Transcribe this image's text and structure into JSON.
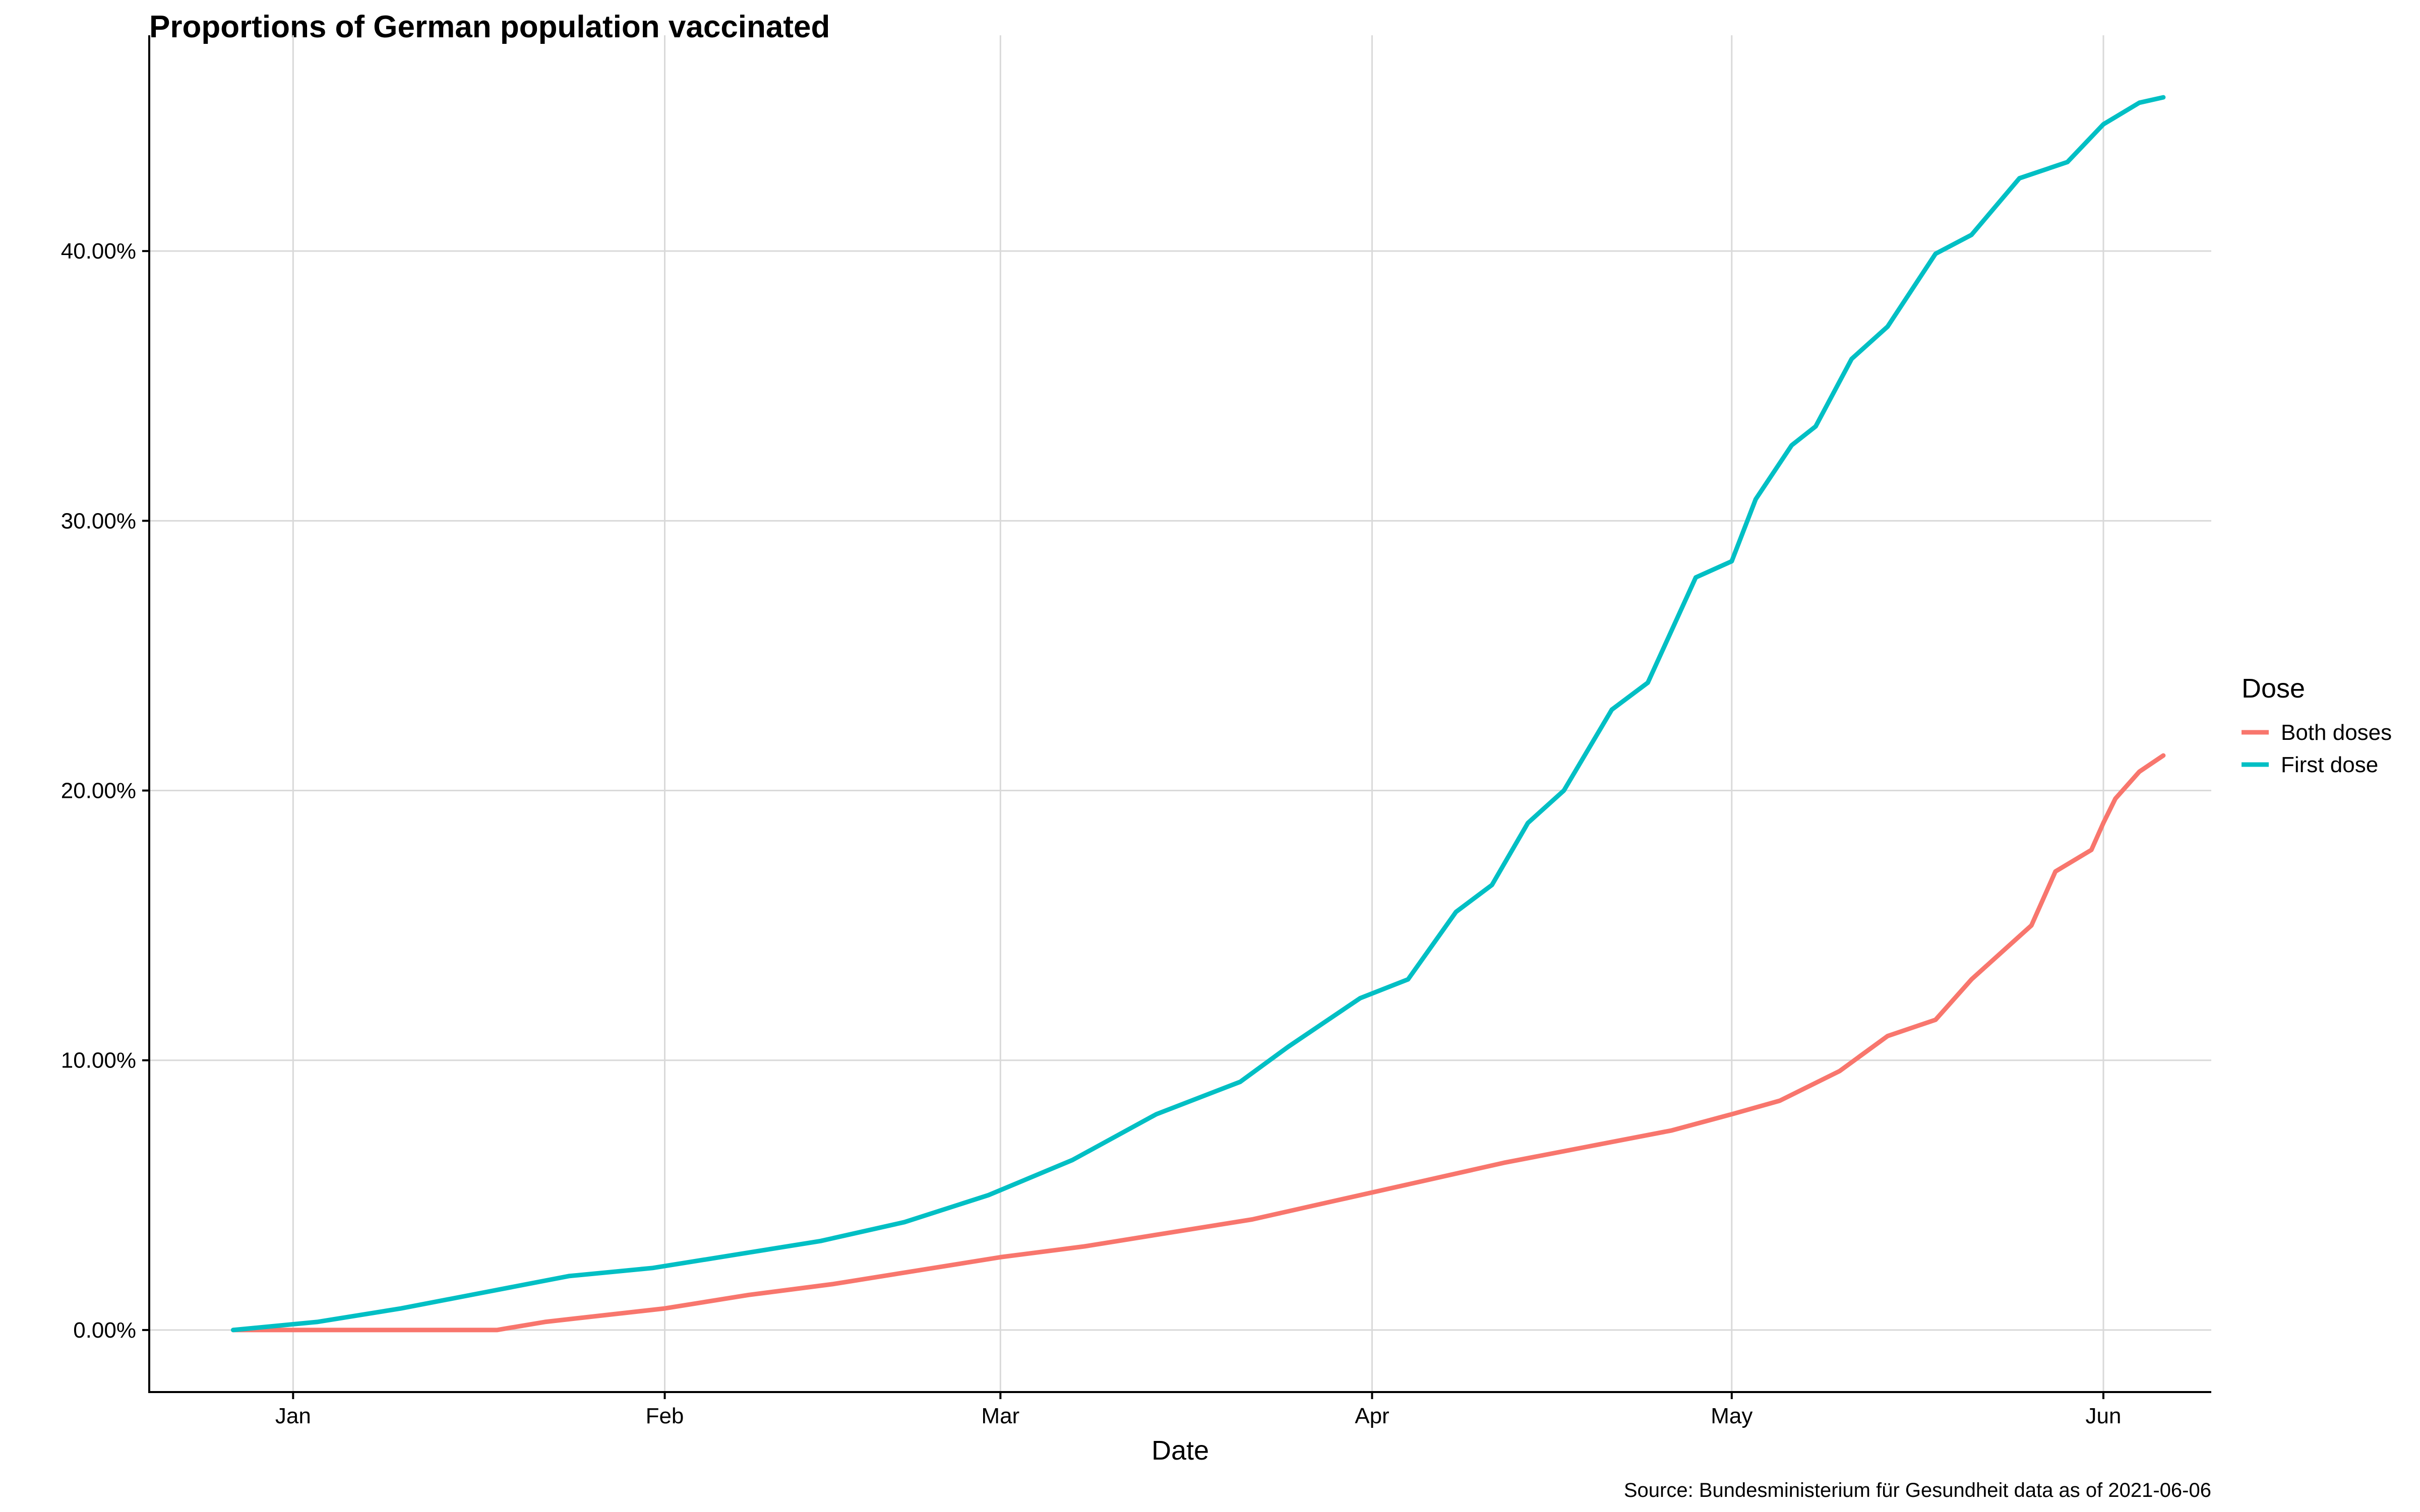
{
  "chart_data": {
    "type": "line",
    "title": "Proportions of German population vaccinated",
    "xlabel": "Date",
    "ylabel": "",
    "caption": "Source: Bundesministerium für Gesundheit data as of 2021-06-06",
    "x_range": [
      "2020-12-20",
      "2021-06-10"
    ],
    "ylim": [
      -2.3,
      48
    ],
    "x_ticks": [
      {
        "label": "Jan",
        "date": "2021-01-01"
      },
      {
        "label": "Feb",
        "date": "2021-02-01"
      },
      {
        "label": "Mar",
        "date": "2021-03-01"
      },
      {
        "label": "Apr",
        "date": "2021-04-01"
      },
      {
        "label": "May",
        "date": "2021-05-01"
      },
      {
        "label": "Jun",
        "date": "2021-06-01"
      }
    ],
    "y_ticks": [
      {
        "label": "0.00%",
        "value": 0
      },
      {
        "label": "10.00%",
        "value": 10
      },
      {
        "label": "20.00%",
        "value": 20
      },
      {
        "label": "30.00%",
        "value": 30
      },
      {
        "label": "40.00%",
        "value": 40
      }
    ],
    "grid": true,
    "legend": {
      "title": "Dose",
      "position": "right"
    },
    "series": [
      {
        "name": "Both doses",
        "color": "#F8766D",
        "points": [
          [
            "2020-12-27",
            0
          ],
          [
            "2021-01-10",
            0
          ],
          [
            "2021-01-18",
            0
          ],
          [
            "2021-01-22",
            0.3
          ],
          [
            "2021-01-26",
            0.5
          ],
          [
            "2021-02-01",
            0.8
          ],
          [
            "2021-02-08",
            1.3
          ],
          [
            "2021-02-15",
            1.7
          ],
          [
            "2021-02-22",
            2.2
          ],
          [
            "2021-03-01",
            2.7
          ],
          [
            "2021-03-08",
            3.1
          ],
          [
            "2021-03-15",
            3.6
          ],
          [
            "2021-03-22",
            4.1
          ],
          [
            "2021-03-29",
            4.8
          ],
          [
            "2021-04-05",
            5.5
          ],
          [
            "2021-04-12",
            6.2
          ],
          [
            "2021-04-19",
            6.8
          ],
          [
            "2021-04-26",
            7.4
          ],
          [
            "2021-05-01",
            8.0
          ],
          [
            "2021-05-05",
            8.5
          ],
          [
            "2021-05-10",
            9.6
          ],
          [
            "2021-05-14",
            10.9
          ],
          [
            "2021-05-18",
            11.5
          ],
          [
            "2021-05-21",
            13.0
          ],
          [
            "2021-05-24",
            14.2
          ],
          [
            "2021-05-26",
            15.0
          ],
          [
            "2021-05-28",
            17.0
          ],
          [
            "2021-05-31",
            17.8
          ],
          [
            "2021-06-01",
            18.8
          ],
          [
            "2021-06-02",
            19.7
          ],
          [
            "2021-06-04",
            20.7
          ],
          [
            "2021-06-06",
            21.3
          ]
        ]
      },
      {
        "name": "First dose",
        "color": "#00BFC4",
        "points": [
          [
            "2020-12-27",
            0
          ],
          [
            "2021-01-03",
            0.3
          ],
          [
            "2021-01-10",
            0.8
          ],
          [
            "2021-01-17",
            1.4
          ],
          [
            "2021-01-24",
            2.0
          ],
          [
            "2021-01-31",
            2.3
          ],
          [
            "2021-02-07",
            2.8
          ],
          [
            "2021-02-14",
            3.3
          ],
          [
            "2021-02-21",
            4.0
          ],
          [
            "2021-02-28",
            5.0
          ],
          [
            "2021-03-07",
            6.3
          ],
          [
            "2021-03-14",
            8.0
          ],
          [
            "2021-03-21",
            9.2
          ],
          [
            "2021-03-25",
            10.5
          ],
          [
            "2021-03-31",
            12.3
          ],
          [
            "2021-04-04",
            13.0
          ],
          [
            "2021-04-08",
            15.5
          ],
          [
            "2021-04-11",
            16.5
          ],
          [
            "2021-04-14",
            18.8
          ],
          [
            "2021-04-17",
            20.0
          ],
          [
            "2021-04-21",
            23.0
          ],
          [
            "2021-04-24",
            24.0
          ],
          [
            "2021-04-28",
            27.9
          ],
          [
            "2021-05-01",
            28.5
          ],
          [
            "2021-05-03",
            30.8
          ],
          [
            "2021-05-06",
            32.8
          ],
          [
            "2021-05-08",
            33.5
          ],
          [
            "2021-05-11",
            36.0
          ],
          [
            "2021-05-14",
            37.2
          ],
          [
            "2021-05-18",
            39.9
          ],
          [
            "2021-05-21",
            40.6
          ],
          [
            "2021-05-25",
            42.7
          ],
          [
            "2021-05-29",
            43.3
          ],
          [
            "2021-06-01",
            44.7
          ],
          [
            "2021-06-04",
            45.5
          ],
          [
            "2021-06-06",
            45.7
          ]
        ]
      }
    ]
  }
}
